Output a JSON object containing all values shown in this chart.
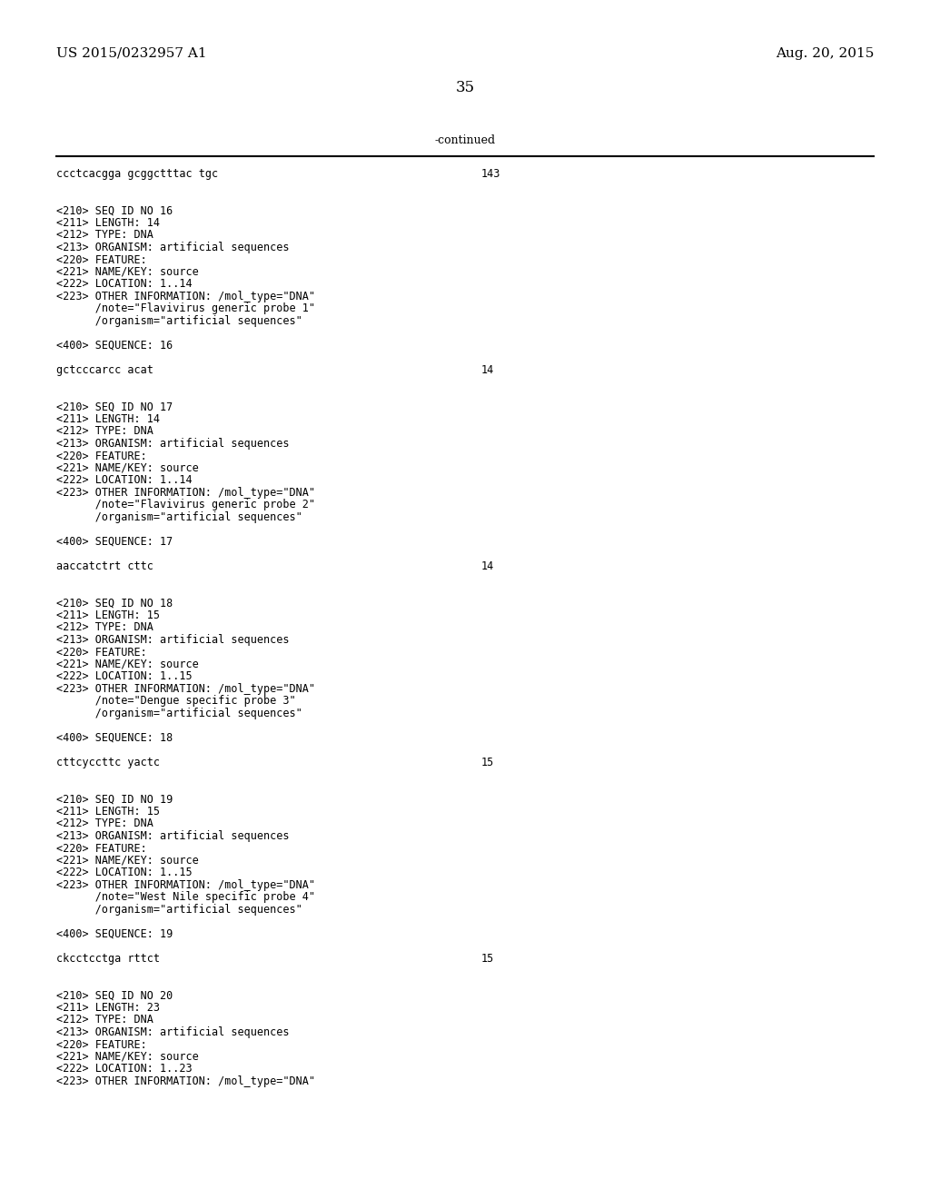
{
  "header_left": "US 2015/0232957 A1",
  "header_right": "Aug. 20, 2015",
  "page_number": "35",
  "continued_text": "-continued",
  "background_color": "#ffffff",
  "text_color": "#000000",
  "font_size_header": 11,
  "font_size_body": 8.5,
  "content_lines": [
    {
      "text": "ccctcacgga gcggctttac tgc",
      "type": "sequence",
      "num": "143"
    },
    {
      "text": "",
      "type": "blank"
    },
    {
      "text": "",
      "type": "blank"
    },
    {
      "text": "<210> SEQ ID NO 16",
      "type": "meta"
    },
    {
      "text": "<211> LENGTH: 14",
      "type": "meta"
    },
    {
      "text": "<212> TYPE: DNA",
      "type": "meta"
    },
    {
      "text": "<213> ORGANISM: artificial sequences",
      "type": "meta"
    },
    {
      "text": "<220> FEATURE:",
      "type": "meta"
    },
    {
      "text": "<221> NAME/KEY: source",
      "type": "meta"
    },
    {
      "text": "<222> LOCATION: 1..14",
      "type": "meta"
    },
    {
      "text": "<223> OTHER INFORMATION: /mol_type=\"DNA\"",
      "type": "meta"
    },
    {
      "text": "      /note=\"Flavivirus generic probe 1\"",
      "type": "meta"
    },
    {
      "text": "      /organism=\"artificial sequences\"",
      "type": "meta"
    },
    {
      "text": "",
      "type": "blank"
    },
    {
      "text": "<400> SEQUENCE: 16",
      "type": "meta"
    },
    {
      "text": "",
      "type": "blank"
    },
    {
      "text": "gctcccarcc acat",
      "type": "sequence",
      "num": "14"
    },
    {
      "text": "",
      "type": "blank"
    },
    {
      "text": "",
      "type": "blank"
    },
    {
      "text": "<210> SEQ ID NO 17",
      "type": "meta"
    },
    {
      "text": "<211> LENGTH: 14",
      "type": "meta"
    },
    {
      "text": "<212> TYPE: DNA",
      "type": "meta"
    },
    {
      "text": "<213> ORGANISM: artificial sequences",
      "type": "meta"
    },
    {
      "text": "<220> FEATURE:",
      "type": "meta"
    },
    {
      "text": "<221> NAME/KEY: source",
      "type": "meta"
    },
    {
      "text": "<222> LOCATION: 1..14",
      "type": "meta"
    },
    {
      "text": "<223> OTHER INFORMATION: /mol_type=\"DNA\"",
      "type": "meta"
    },
    {
      "text": "      /note=\"Flavivirus generic probe 2\"",
      "type": "meta"
    },
    {
      "text": "      /organism=\"artificial sequences\"",
      "type": "meta"
    },
    {
      "text": "",
      "type": "blank"
    },
    {
      "text": "<400> SEQUENCE: 17",
      "type": "meta"
    },
    {
      "text": "",
      "type": "blank"
    },
    {
      "text": "aaccatctrt cttc",
      "type": "sequence",
      "num": "14"
    },
    {
      "text": "",
      "type": "blank"
    },
    {
      "text": "",
      "type": "blank"
    },
    {
      "text": "<210> SEQ ID NO 18",
      "type": "meta"
    },
    {
      "text": "<211> LENGTH: 15",
      "type": "meta"
    },
    {
      "text": "<212> TYPE: DNA",
      "type": "meta"
    },
    {
      "text": "<213> ORGANISM: artificial sequences",
      "type": "meta"
    },
    {
      "text": "<220> FEATURE:",
      "type": "meta"
    },
    {
      "text": "<221> NAME/KEY: source",
      "type": "meta"
    },
    {
      "text": "<222> LOCATION: 1..15",
      "type": "meta"
    },
    {
      "text": "<223> OTHER INFORMATION: /mol_type=\"DNA\"",
      "type": "meta"
    },
    {
      "text": "      /note=\"Dengue specific probe 3\"",
      "type": "meta"
    },
    {
      "text": "      /organism=\"artificial sequences\"",
      "type": "meta"
    },
    {
      "text": "",
      "type": "blank"
    },
    {
      "text": "<400> SEQUENCE: 18",
      "type": "meta"
    },
    {
      "text": "",
      "type": "blank"
    },
    {
      "text": "cttcyccttc yactc",
      "type": "sequence",
      "num": "15"
    },
    {
      "text": "",
      "type": "blank"
    },
    {
      "text": "",
      "type": "blank"
    },
    {
      "text": "<210> SEQ ID NO 19",
      "type": "meta"
    },
    {
      "text": "<211> LENGTH: 15",
      "type": "meta"
    },
    {
      "text": "<212> TYPE: DNA",
      "type": "meta"
    },
    {
      "text": "<213> ORGANISM: artificial sequences",
      "type": "meta"
    },
    {
      "text": "<220> FEATURE:",
      "type": "meta"
    },
    {
      "text": "<221> NAME/KEY: source",
      "type": "meta"
    },
    {
      "text": "<222> LOCATION: 1..15",
      "type": "meta"
    },
    {
      "text": "<223> OTHER INFORMATION: /mol_type=\"DNA\"",
      "type": "meta"
    },
    {
      "text": "      /note=\"West Nile specific probe 4\"",
      "type": "meta"
    },
    {
      "text": "      /organism=\"artificial sequences\"",
      "type": "meta"
    },
    {
      "text": "",
      "type": "blank"
    },
    {
      "text": "<400> SEQUENCE: 19",
      "type": "meta"
    },
    {
      "text": "",
      "type": "blank"
    },
    {
      "text": "ckcctcctga rttct",
      "type": "sequence",
      "num": "15"
    },
    {
      "text": "",
      "type": "blank"
    },
    {
      "text": "",
      "type": "blank"
    },
    {
      "text": "<210> SEQ ID NO 20",
      "type": "meta"
    },
    {
      "text": "<211> LENGTH: 23",
      "type": "meta"
    },
    {
      "text": "<212> TYPE: DNA",
      "type": "meta"
    },
    {
      "text": "<213> ORGANISM: artificial sequences",
      "type": "meta"
    },
    {
      "text": "<220> FEATURE:",
      "type": "meta"
    },
    {
      "text": "<221> NAME/KEY: source",
      "type": "meta"
    },
    {
      "text": "<222> LOCATION: 1..23",
      "type": "meta"
    },
    {
      "text": "<223> OTHER INFORMATION: /mol_type=\"DNA\"",
      "type": "meta"
    }
  ]
}
